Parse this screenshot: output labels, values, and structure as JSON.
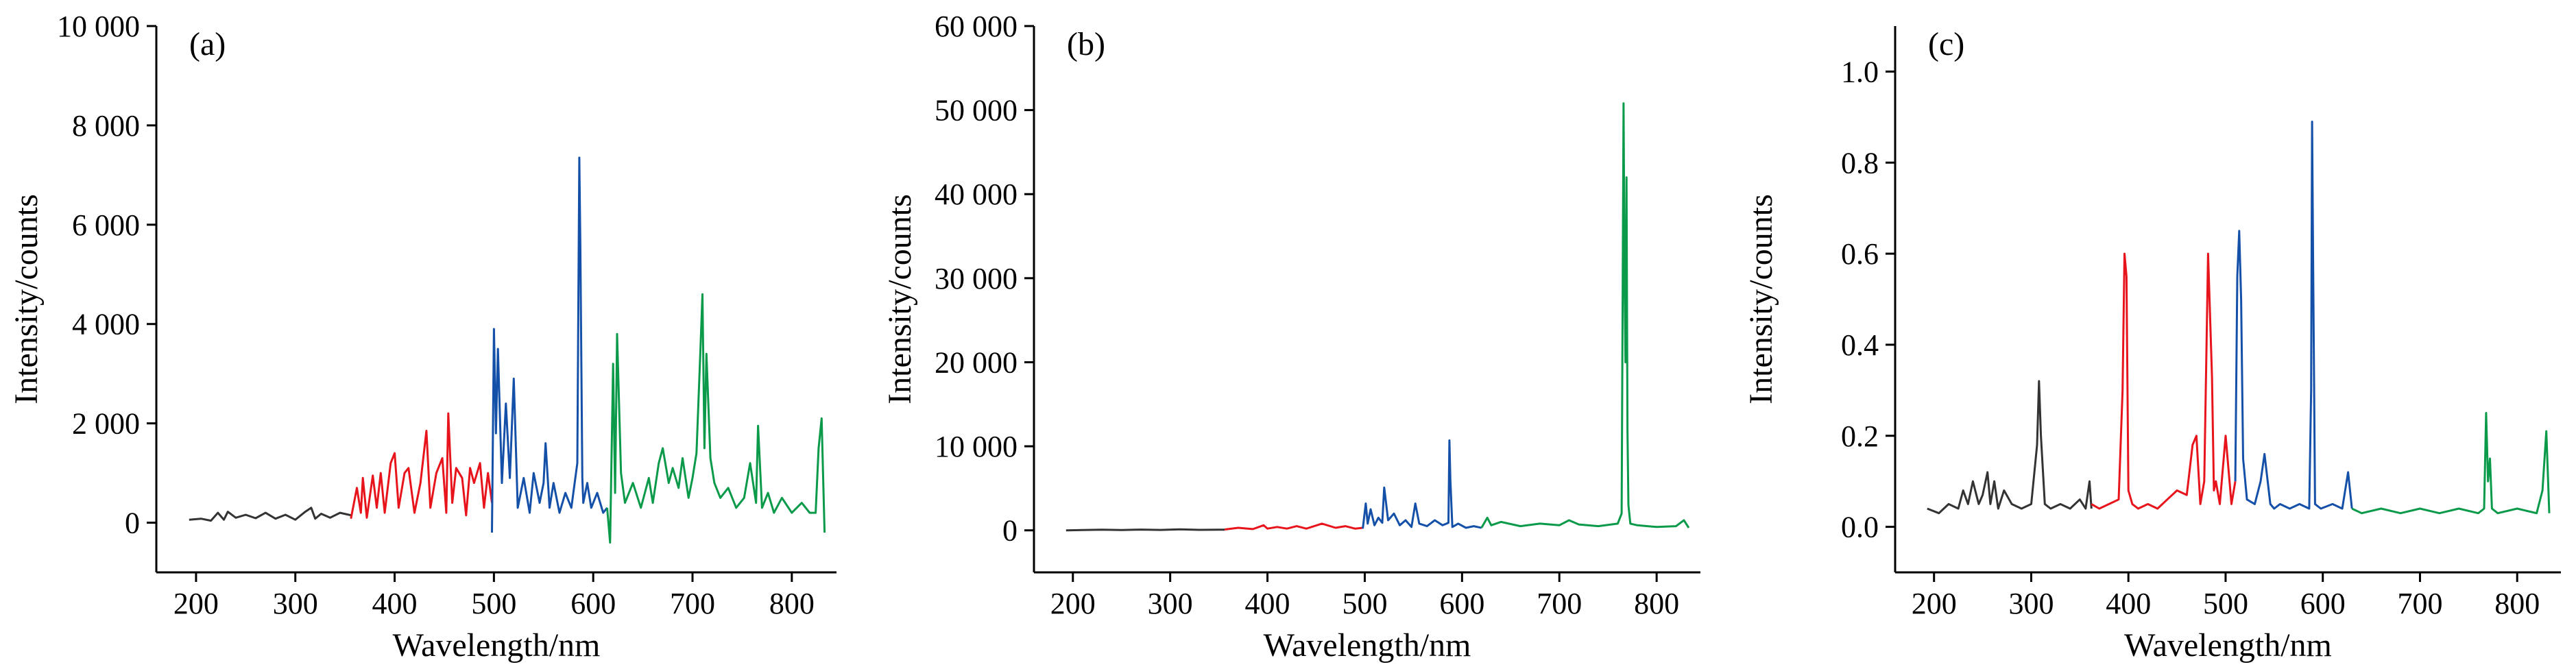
{
  "chart_data": [
    {
      "type": "line",
      "panel_label": "(a)",
      "xlabel": "Wavelength/nm",
      "ylabel": "Intensity/counts",
      "xlim": [
        160,
        845
      ],
      "ylim": [
        -1000,
        10000
      ],
      "xticks": [
        200,
        300,
        400,
        500,
        600,
        700,
        800
      ],
      "xtick_labels": [
        "200",
        "300",
        "400",
        "500",
        "600",
        "700",
        "800"
      ],
      "yticks": [
        0,
        2000,
        4000,
        6000,
        8000,
        10000
      ],
      "ytick_labels": [
        "0",
        "2 000",
        "4 000",
        "6 000",
        "8 000",
        "10 000"
      ],
      "grid": false,
      "series": [
        {
          "color": "#333333",
          "x": [
            193,
            205,
            215,
            222,
            228,
            232,
            240,
            250,
            260,
            270,
            280,
            290,
            300,
            310,
            316,
            320,
            326,
            335,
            345,
            356
          ],
          "y": [
            60,
            80,
            40,
            200,
            60,
            220,
            100,
            160,
            90,
            200,
            80,
            160,
            60,
            220,
            300,
            80,
            180,
            100,
            200,
            150
          ]
        },
        {
          "color": "#e8141c",
          "x": [
            356,
            362,
            366,
            368,
            372,
            378,
            382,
            386,
            390,
            396,
            400,
            404,
            410,
            414,
            420,
            426,
            432,
            436,
            442,
            448,
            452,
            454,
            458,
            462,
            468,
            472,
            476,
            480,
            486,
            490,
            494,
            498
          ],
          "y": [
            80,
            700,
            200,
            900,
            100,
            950,
            300,
            1000,
            200,
            1200,
            1400,
            300,
            1000,
            1100,
            200,
            800,
            1850,
            300,
            1000,
            1300,
            200,
            2200,
            400,
            1100,
            900,
            150,
            1100,
            800,
            1200,
            300,
            1000,
            400
          ]
        },
        {
          "color": "#1450a8",
          "x": [
            498,
            500,
            502,
            504,
            508,
            512,
            516,
            520,
            524,
            530,
            536,
            540,
            546,
            550,
            552,
            556,
            560,
            566,
            572,
            578,
            584,
            586,
            587,
            589,
            590,
            594,
            598,
            604,
            610,
            614
          ],
          "y": [
            -200,
            3900,
            1800,
            3500,
            800,
            2400,
            900,
            2900,
            300,
            900,
            200,
            1000,
            400,
            800,
            1600,
            300,
            800,
            200,
            600,
            300,
            1200,
            7350,
            5600,
            900,
            400,
            800,
            300,
            600,
            200,
            300
          ]
        },
        {
          "color": "#0a9a4a",
          "x": [
            614,
            617,
            620,
            622,
            624,
            628,
            632,
            640,
            648,
            656,
            660,
            666,
            670,
            676,
            680,
            686,
            690,
            696,
            700,
            704,
            708,
            710,
            712,
            714,
            718,
            722,
            728,
            736,
            744,
            752,
            758,
            764,
            766,
            770,
            776,
            782,
            790,
            800,
            810,
            818,
            824,
            827,
            830,
            833
          ],
          "y": [
            300,
            -400,
            3200,
            600,
            3800,
            1000,
            400,
            800,
            300,
            900,
            400,
            1200,
            1500,
            800,
            1100,
            700,
            1300,
            500,
            900,
            1400,
            3500,
            4600,
            1500,
            3400,
            1300,
            800,
            500,
            700,
            300,
            500,
            1200,
            400,
            1950,
            300,
            600,
            200,
            500,
            200,
            400,
            200,
            200,
            1500,
            2100,
            -200
          ]
        }
      ]
    },
    {
      "type": "line",
      "panel_label": "(b)",
      "xlabel": "Wavelength/nm",
      "ylabel": "Intensity/counts",
      "xlim": [
        160,
        845
      ],
      "ylim": [
        -5000,
        60000
      ],
      "xticks": [
        200,
        300,
        400,
        500,
        600,
        700,
        800
      ],
      "xtick_labels": [
        "200",
        "300",
        "400",
        "500",
        "600",
        "700",
        "800"
      ],
      "yticks": [
        0,
        10000,
        20000,
        30000,
        40000,
        50000,
        60000
      ],
      "ytick_labels": [
        "0",
        "10 000",
        "20 000",
        "30 000",
        "40 000",
        "50 000",
        "60 000"
      ],
      "grid": false,
      "series": [
        {
          "color": "#333333",
          "x": [
            193,
            210,
            230,
            250,
            270,
            290,
            310,
            330,
            356
          ],
          "y": [
            0,
            30,
            80,
            40,
            90,
            50,
            120,
            60,
            80
          ]
        },
        {
          "color": "#e8141c",
          "x": [
            356,
            370,
            385,
            396,
            400,
            410,
            420,
            430,
            440,
            456,
            470,
            480,
            490,
            498
          ],
          "y": [
            100,
            300,
            150,
            600,
            200,
            400,
            200,
            500,
            200,
            800,
            300,
            500,
            200,
            300
          ]
        },
        {
          "color": "#1450a8",
          "x": [
            498,
            501,
            503,
            506,
            510,
            514,
            518,
            520,
            524,
            530,
            536,
            542,
            548,
            552,
            556,
            564,
            572,
            580,
            586,
            587,
            588,
            590,
            596,
            604,
            612,
            620
          ],
          "y": [
            200,
            3200,
            800,
            2500,
            600,
            1500,
            900,
            5100,
            1200,
            2000,
            600,
            1200,
            400,
            3200,
            800,
            500,
            1200,
            600,
            900,
            10700,
            6000,
            400,
            800,
            300,
            500,
            300
          ]
        },
        {
          "color": "#0a9a4a",
          "x": [
            620,
            626,
            630,
            640,
            660,
            680,
            700,
            710,
            720,
            740,
            760,
            764,
            766,
            767,
            768,
            769,
            770,
            771,
            773,
            780,
            800,
            820,
            828,
            833
          ],
          "y": [
            300,
            1500,
            600,
            1000,
            500,
            800,
            600,
            1200,
            700,
            500,
            800,
            2000,
            50800,
            30000,
            20000,
            42000,
            12000,
            3000,
            800,
            600,
            400,
            500,
            1200,
            300
          ]
        }
      ]
    },
    {
      "type": "line",
      "panel_label": "(c)",
      "xlabel": "Wavelength/nm",
      "ylabel": "Intensity/counts",
      "xlim": [
        160,
        845
      ],
      "ylim": [
        -0.1,
        1.1
      ],
      "xticks": [
        200,
        300,
        400,
        500,
        600,
        700,
        800
      ],
      "xtick_labels": [
        "200",
        "300",
        "400",
        "500",
        "600",
        "700",
        "800"
      ],
      "yticks": [
        0.0,
        0.2,
        0.4,
        0.6,
        0.8,
        1.0
      ],
      "ytick_labels": [
        "0.0",
        "0.2",
        "0.4",
        "0.6",
        "0.8",
        "1.0"
      ],
      "grid": false,
      "series": [
        {
          "color": "#333333",
          "x": [
            193,
            205,
            215,
            225,
            230,
            235,
            240,
            246,
            250,
            255,
            258,
            262,
            266,
            272,
            280,
            290,
            300,
            306,
            308,
            310,
            314,
            320,
            330,
            340,
            350,
            356,
            360,
            362
          ],
          "y": [
            0.04,
            0.03,
            0.05,
            0.04,
            0.08,
            0.05,
            0.1,
            0.05,
            0.07,
            0.12,
            0.05,
            0.1,
            0.04,
            0.08,
            0.05,
            0.04,
            0.05,
            0.18,
            0.32,
            0.2,
            0.05,
            0.04,
            0.05,
            0.04,
            0.06,
            0.04,
            0.1,
            0.04
          ]
        },
        {
          "color": "#e8141c",
          "x": [
            362,
            370,
            380,
            390,
            394,
            396,
            398,
            400,
            404,
            410,
            420,
            430,
            440,
            450,
            460,
            466,
            470,
            474,
            478,
            482,
            486,
            488,
            490,
            494,
            500,
            506,
            510
          ],
          "y": [
            0.05,
            0.04,
            0.05,
            0.06,
            0.3,
            0.6,
            0.55,
            0.08,
            0.05,
            0.04,
            0.05,
            0.04,
            0.06,
            0.08,
            0.07,
            0.18,
            0.2,
            0.05,
            0.1,
            0.6,
            0.33,
            0.08,
            0.1,
            0.05,
            0.2,
            0.05,
            0.1
          ]
        },
        {
          "color": "#1450a8",
          "x": [
            510,
            512,
            514,
            516,
            518,
            522,
            530,
            536,
            540,
            546,
            550,
            556,
            566,
            576,
            586,
            588,
            589,
            590,
            592,
            598,
            610,
            620,
            626,
            630
          ],
          "y": [
            0.1,
            0.55,
            0.65,
            0.5,
            0.15,
            0.06,
            0.05,
            0.1,
            0.16,
            0.05,
            0.04,
            0.05,
            0.04,
            0.05,
            0.04,
            0.3,
            0.89,
            0.6,
            0.05,
            0.04,
            0.05,
            0.04,
            0.12,
            0.04
          ]
        },
        {
          "color": "#0a9a4a",
          "x": [
            630,
            640,
            660,
            680,
            700,
            720,
            740,
            760,
            766,
            768,
            770,
            772,
            774,
            780,
            800,
            820,
            826,
            830,
            833
          ],
          "y": [
            0.04,
            0.03,
            0.04,
            0.03,
            0.04,
            0.03,
            0.04,
            0.03,
            0.04,
            0.25,
            0.1,
            0.15,
            0.04,
            0.03,
            0.04,
            0.03,
            0.08,
            0.21,
            0.03
          ]
        }
      ]
    }
  ]
}
